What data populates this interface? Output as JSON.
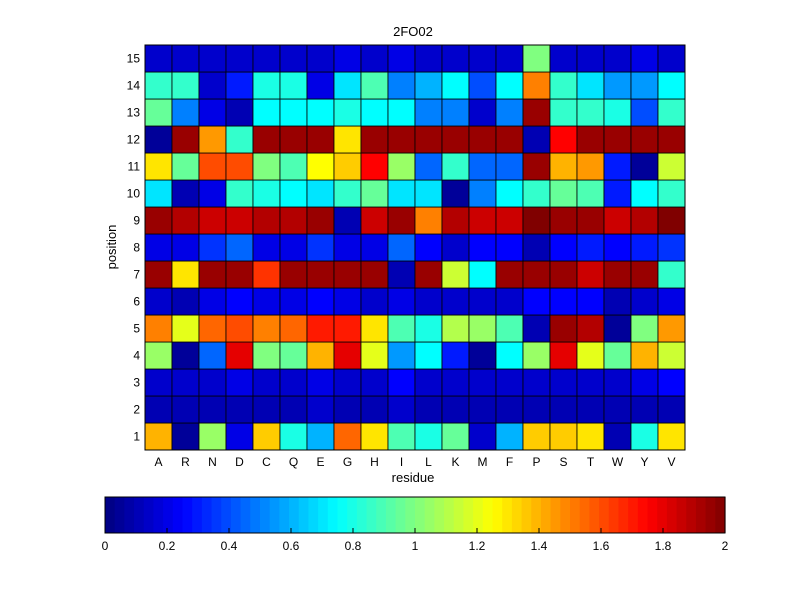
{
  "chart_data": {
    "type": "heatmap",
    "title": "2FO02",
    "xlabel": "residue",
    "ylabel": "position",
    "x_categories": [
      "A",
      "R",
      "N",
      "D",
      "C",
      "Q",
      "E",
      "G",
      "H",
      "I",
      "L",
      "K",
      "M",
      "F",
      "P",
      "S",
      "T",
      "W",
      "Y",
      "V"
    ],
    "y_categories": [
      "1",
      "2",
      "3",
      "4",
      "5",
      "6",
      "7",
      "8",
      "9",
      "10",
      "11",
      "12",
      "13",
      "14",
      "15"
    ],
    "colorbar": {
      "min": 0,
      "max": 2,
      "ticks": [
        "0",
        "0.2",
        "0.4",
        "0.6",
        "0.8",
        "1",
        "1.2",
        "1.4",
        "1.6",
        "1.8",
        "2"
      ]
    },
    "colormap": "jet",
    "grid": "cell borders",
    "values": [
      [
        1.4,
        0.05,
        1.05,
        0.2,
        1.35,
        0.8,
        0.6,
        1.55,
        1.3,
        0.9,
        0.8,
        0.95,
        0.15,
        0.6,
        1.35,
        1.35,
        1.3,
        0.1,
        0.8,
        1.3
      ],
      [
        0.1,
        0.1,
        0.1,
        0.1,
        0.1,
        0.1,
        0.15,
        0.1,
        0.1,
        0.15,
        0.1,
        0.1,
        0.1,
        0.1,
        0.1,
        0.1,
        0.1,
        0.1,
        0.1,
        0.1
      ],
      [
        0.15,
        0.15,
        0.15,
        0.2,
        0.15,
        0.15,
        0.2,
        0.15,
        0.15,
        0.25,
        0.15,
        0.15,
        0.15,
        0.15,
        0.15,
        0.15,
        0.15,
        0.15,
        0.2,
        0.25
      ],
      [
        1.05,
        0.05,
        0.45,
        1.8,
        1.0,
        0.95,
        1.4,
        1.8,
        1.2,
        0.55,
        0.75,
        0.3,
        0.05,
        0.75,
        1.05,
        1.8,
        1.2,
        0.95,
        1.4,
        1.15
      ],
      [
        1.5,
        1.2,
        1.55,
        1.6,
        1.5,
        1.55,
        1.7,
        1.7,
        1.3,
        0.9,
        0.8,
        1.1,
        1.05,
        0.9,
        0.1,
        1.95,
        1.9,
        0.05,
        1.0,
        1.45
      ],
      [
        0.15,
        0.1,
        0.2,
        0.25,
        0.2,
        0.2,
        0.25,
        0.2,
        0.15,
        0.2,
        0.15,
        0.15,
        0.15,
        0.15,
        0.25,
        0.25,
        0.25,
        0.1,
        0.15,
        0.2
      ],
      [
        1.95,
        1.3,
        1.95,
        1.95,
        1.65,
        1.95,
        1.95,
        1.95,
        1.95,
        0.1,
        1.95,
        1.15,
        0.75,
        1.95,
        1.95,
        1.95,
        1.85,
        1.95,
        1.95,
        0.85
      ],
      [
        0.2,
        0.2,
        0.35,
        0.45,
        0.2,
        0.2,
        0.35,
        0.2,
        0.2,
        0.45,
        0.25,
        0.15,
        0.25,
        0.25,
        0.1,
        0.25,
        0.3,
        0.25,
        0.3,
        0.35
      ],
      [
        1.95,
        1.9,
        1.85,
        1.85,
        1.9,
        1.9,
        1.95,
        0.1,
        1.85,
        1.95,
        1.5,
        1.9,
        1.85,
        1.85,
        2.0,
        1.95,
        1.95,
        1.85,
        1.9,
        2.0
      ],
      [
        0.7,
        0.1,
        0.2,
        0.85,
        0.8,
        0.75,
        0.7,
        0.85,
        0.95,
        0.7,
        0.7,
        0.05,
        0.5,
        0.75,
        0.85,
        0.95,
        0.9,
        0.3,
        0.75,
        0.85
      ],
      [
        1.3,
        0.95,
        1.6,
        1.6,
        1.0,
        0.9,
        1.25,
        1.35,
        1.75,
        1.05,
        0.45,
        0.85,
        0.45,
        0.45,
        1.95,
        1.4,
        1.45,
        0.3,
        0.05,
        1.15
      ],
      [
        0.05,
        1.95,
        1.45,
        0.85,
        1.95,
        1.95,
        1.95,
        1.3,
        1.95,
        1.95,
        1.95,
        1.95,
        1.95,
        1.95,
        0.1,
        1.75,
        1.95,
        1.95,
        1.95,
        1.95
      ],
      [
        0.95,
        0.5,
        0.2,
        0.1,
        0.75,
        0.75,
        0.75,
        0.8,
        0.75,
        0.75,
        0.5,
        0.5,
        0.15,
        0.5,
        1.95,
        0.85,
        0.85,
        0.8,
        0.4,
        0.85
      ],
      [
        0.85,
        0.85,
        0.15,
        0.3,
        0.8,
        0.8,
        0.2,
        0.7,
        0.9,
        0.5,
        0.6,
        0.75,
        0.4,
        0.75,
        1.5,
        0.85,
        0.7,
        0.55,
        0.55,
        0.75
      ],
      [
        0.15,
        0.15,
        0.15,
        0.15,
        0.15,
        0.15,
        0.15,
        0.2,
        0.15,
        0.2,
        0.15,
        0.15,
        0.15,
        0.15,
        1.0,
        0.15,
        0.15,
        0.15,
        0.2,
        0.15
      ]
    ]
  }
}
